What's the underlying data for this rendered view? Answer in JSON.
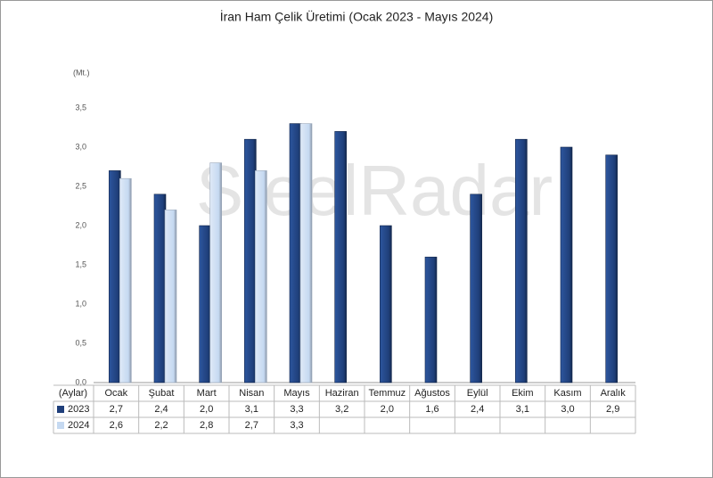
{
  "chart_data": {
    "type": "bar",
    "title": "İran Ham Çelik Üretimi (Ocak 2023 - Mayıs 2024)",
    "y_axis_label": "(Mt.)",
    "table_header": "(Aylar)",
    "watermark": "SteelRadar",
    "categories": [
      "Ocak",
      "Şubat",
      "Mart",
      "Nisan",
      "Mayıs",
      "Haziran",
      "Temmuz",
      "Ağustos",
      "Eylül",
      "Ekim",
      "Kasım",
      "Aralık"
    ],
    "series": [
      {
        "name": "2023",
        "color": "#1f3f7a",
        "values": [
          2.7,
          2.4,
          2.0,
          3.1,
          3.3,
          3.2,
          2.0,
          1.6,
          2.4,
          3.1,
          3.0,
          2.9
        ],
        "value_labels": [
          "2,7",
          "2,4",
          "2,0",
          "3,1",
          "3,3",
          "3,2",
          "2,0",
          "1,6",
          "2,4",
          "3,1",
          "3,0",
          "2,9"
        ]
      },
      {
        "name": "2024",
        "color": "#c5d9f1",
        "values": [
          2.6,
          2.2,
          2.8,
          2.7,
          3.3,
          null,
          null,
          null,
          null,
          null,
          null,
          null
        ],
        "value_labels": [
          "2,6",
          "2,2",
          "2,8",
          "2,7",
          "3,3",
          null,
          null,
          null,
          null,
          null,
          null,
          null
        ]
      }
    ],
    "ylim": [
      0,
      3.5
    ],
    "yticks": [
      {
        "value": 0,
        "label": "0,0"
      },
      {
        "value": 0.5,
        "label": "0,5"
      },
      {
        "value": 1,
        "label": "1,0"
      },
      {
        "value": 1.5,
        "label": "1,5"
      },
      {
        "value": 2,
        "label": "2,0"
      },
      {
        "value": 2.5,
        "label": "2,5"
      },
      {
        "value": 3,
        "label": "3,0"
      },
      {
        "value": 3.5,
        "label": "3,5"
      }
    ],
    "grid": false
  }
}
